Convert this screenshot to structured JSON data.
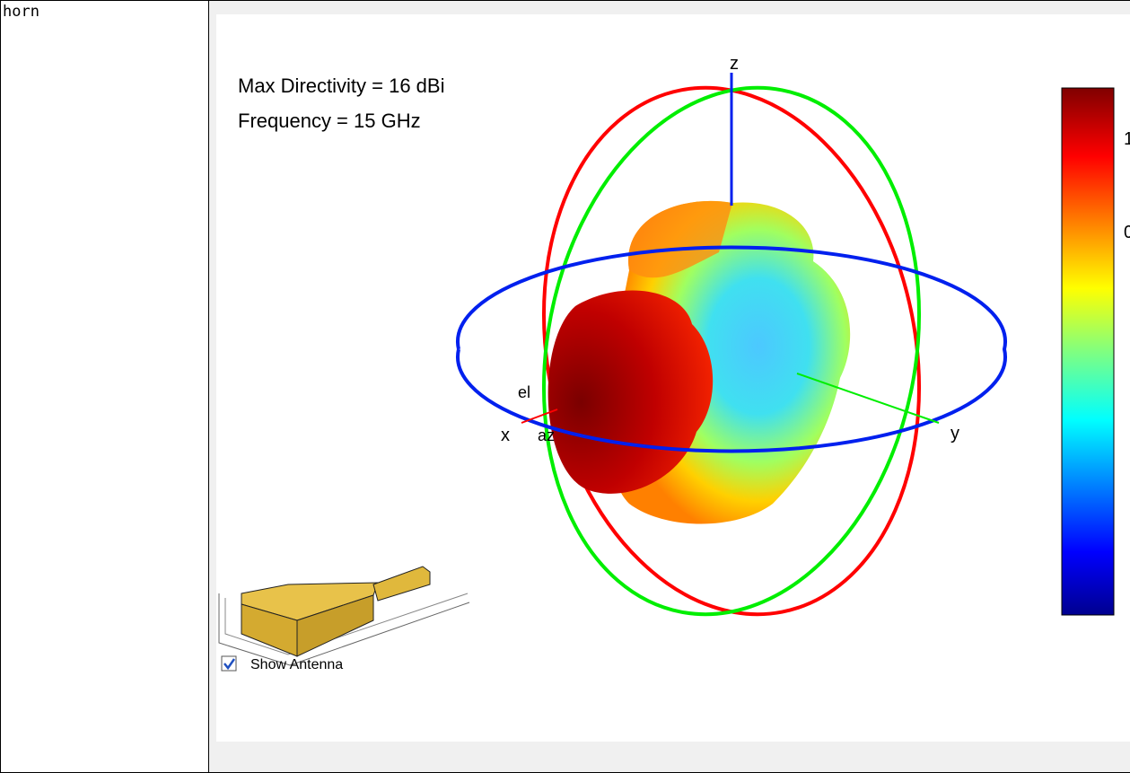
{
  "name": "horn",
  "pattern": {
    "annotations": [
      "Max Directivity = 16 dBi",
      "Frequency = 15 GHz"
    ],
    "axes": {
      "x": "x",
      "y": "y",
      "z": "z",
      "el": "el",
      "az": "az"
    },
    "colorbar_labels": [
      "1",
      "0"
    ]
  },
  "controls": {
    "show_antenna": "Show Antenna",
    "checked": true
  }
}
